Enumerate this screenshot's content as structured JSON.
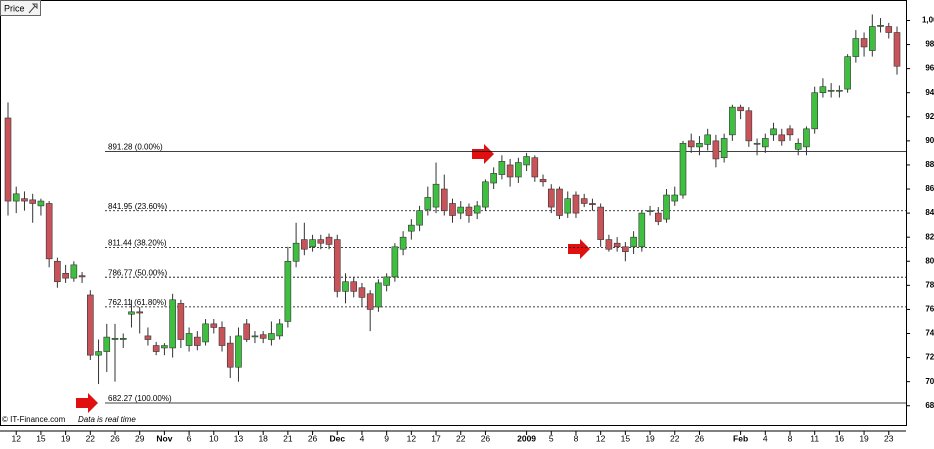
{
  "chart_data": {
    "type": "candlestick",
    "legend": "Price",
    "source": "© IT-Finance.com",
    "note": "Data is real time",
    "categories": [
      null,
      "12",
      null,
      null,
      "15",
      null,
      null,
      "19",
      null,
      null,
      "22",
      null,
      null,
      "26",
      null,
      null,
      "29",
      null,
      null,
      "Nov",
      null,
      null,
      "6",
      null,
      null,
      "10",
      null,
      null,
      "13",
      null,
      null,
      "18",
      null,
      null,
      "21",
      null,
      null,
      "26",
      null,
      null,
      "Dec",
      null,
      null,
      "4",
      null,
      null,
      "9",
      null,
      null,
      "12",
      null,
      null,
      "17",
      null,
      null,
      "22",
      null,
      null,
      "26",
      null,
      null,
      null,
      null,
      "2009",
      null,
      null,
      "5",
      null,
      null,
      "8",
      null,
      null,
      "12",
      null,
      null,
      "15",
      null,
      null,
      "19",
      null,
      null,
      "22",
      null,
      null,
      "26",
      null,
      null,
      null,
      null,
      "Feb",
      null,
      null,
      "4",
      null,
      null,
      "8",
      null,
      null,
      "11",
      null,
      null,
      "16",
      null,
      null,
      "19",
      null,
      null,
      "23",
      null
    ],
    "open": [
      919,
      850,
      852,
      851,
      846,
      848,
      800,
      790,
      786,
      788,
      772,
      722,
      725,
      735,
      735,
      756,
      758,
      738,
      730,
      728,
      728,
      765,
      730,
      737,
      733,
      748,
      745,
      732,
      712,
      748,
      738,
      739,
      735,
      738,
      750,
      800,
      818,
      812,
      818,
      820,
      818,
      775,
      783,
      778,
      773,
      762,
      780,
      787,
      810,
      825,
      830,
      843,
      845,
      860,
      848,
      840,
      845,
      840,
      845,
      865,
      872,
      880,
      870,
      880,
      886,
      868,
      860,
      860,
      840,
      855,
      852,
      848,
      845,
      818,
      815,
      812,
      812,
      812,
      842,
      840,
      835,
      850,
      855,
      900,
      895,
      897,
      900,
      886,
      905,
      928,
      925,
      898,
      895,
      905,
      905,
      910,
      893,
      895,
      910,
      940,
      942,
      942,
      943,
      970,
      985,
      975,
      995,
      995,
      990
    ],
    "high": [
      932,
      862,
      858,
      856,
      852,
      850,
      803,
      797,
      800,
      791,
      776,
      735,
      748,
      748,
      740,
      768,
      762,
      745,
      733,
      732,
      773,
      768,
      745,
      742,
      752,
      752,
      750,
      738,
      745,
      752,
      742,
      742,
      750,
      752,
      812,
      832,
      832,
      822,
      822,
      823,
      822,
      790,
      787,
      782,
      776,
      785,
      790,
      815,
      825,
      835,
      846,
      862,
      882,
      872,
      852,
      850,
      848,
      850,
      868,
      878,
      888,
      885,
      886,
      890,
      888,
      872,
      864,
      862,
      858,
      858,
      856,
      852,
      848,
      822,
      820,
      816,
      825,
      842,
      846,
      845,
      860,
      862,
      900,
      906,
      904,
      910,
      905,
      906,
      930,
      930,
      928,
      902,
      906,
      915,
      910,
      913,
      902,
      912,
      945,
      952,
      948,
      946,
      972,
      992,
      990,
      1005,
      1002,
      998,
      995
    ],
    "low": [
      838,
      840,
      842,
      832,
      838,
      795,
      778,
      782,
      783,
      782,
      718,
      698,
      708,
      700,
      728,
      745,
      740,
      730,
      722,
      722,
      720,
      728,
      725,
      726,
      730,
      740,
      725,
      703,
      700,
      733,
      732,
      732,
      730,
      735,
      745,
      795,
      805,
      808,
      810,
      810,
      770,
      765,
      770,
      762,
      742,
      758,
      775,
      783,
      805,
      818,
      825,
      838,
      840,
      838,
      832,
      835,
      832,
      835,
      842,
      860,
      868,
      862,
      865,
      875,
      866,
      862,
      840,
      835,
      836,
      836,
      845,
      842,
      812,
      808,
      808,
      800,
      806,
      808,
      838,
      830,
      832,
      846,
      852,
      890,
      888,
      892,
      878,
      882,
      900,
      918,
      895,
      888,
      890,
      900,
      896,
      900,
      888,
      888,
      906,
      936,
      936,
      936,
      940,
      965,
      970,
      970,
      990,
      985,
      955
    ],
    "close": [
      850,
      856,
      850,
      848,
      850,
      802,
      783,
      786,
      797,
      787,
      722,
      725,
      737,
      736,
      736,
      758,
      757,
      735,
      725,
      730,
      768,
      735,
      740,
      730,
      748,
      745,
      730,
      712,
      738,
      735,
      738,
      736,
      740,
      748,
      800,
      815,
      810,
      818,
      815,
      814,
      775,
      783,
      775,
      770,
      760,
      782,
      787,
      812,
      820,
      830,
      842,
      853,
      864,
      842,
      838,
      845,
      838,
      846,
      866,
      873,
      883,
      870,
      882,
      887,
      870,
      866,
      845,
      838,
      852,
      840,
      848,
      847,
      818,
      810,
      812,
      808,
      820,
      840,
      842,
      833,
      855,
      855,
      898,
      895,
      898,
      905,
      885,
      902,
      928,
      925,
      900,
      898,
      902,
      910,
      900,
      905,
      898,
      910,
      940,
      945,
      942,
      942,
      970,
      985,
      978,
      995,
      996,
      990,
      962
    ],
    "up_color": "#3fbf3f",
    "down_color": "#c8545a",
    "ylim": [
      664,
      1017
    ],
    "yticks": [
      680,
      700,
      720,
      740,
      760,
      780,
      800,
      820,
      840,
      860,
      880,
      900,
      920,
      940,
      960,
      980,
      {
        "value": 1000,
        "label": "1,000"
      }
    ],
    "levels": [
      {
        "value": 891.28,
        "label": "891.28 (0.00%)",
        "style": "solid"
      },
      {
        "value": 841.95,
        "label": "841.95 (23.60%)",
        "style": "dashed"
      },
      {
        "value": 811.44,
        "label": "811.44 (38.20%)",
        "style": "dashed"
      },
      {
        "value": 786.77,
        "label": "786.77 (50.00%)",
        "style": "dashed"
      },
      {
        "value": 762.11,
        "label": "762.11 (61.80%)",
        "style": "dashed"
      },
      {
        "value": 682.27,
        "label": "682.27 (100.00%)",
        "style": "solid"
      }
    ]
  }
}
